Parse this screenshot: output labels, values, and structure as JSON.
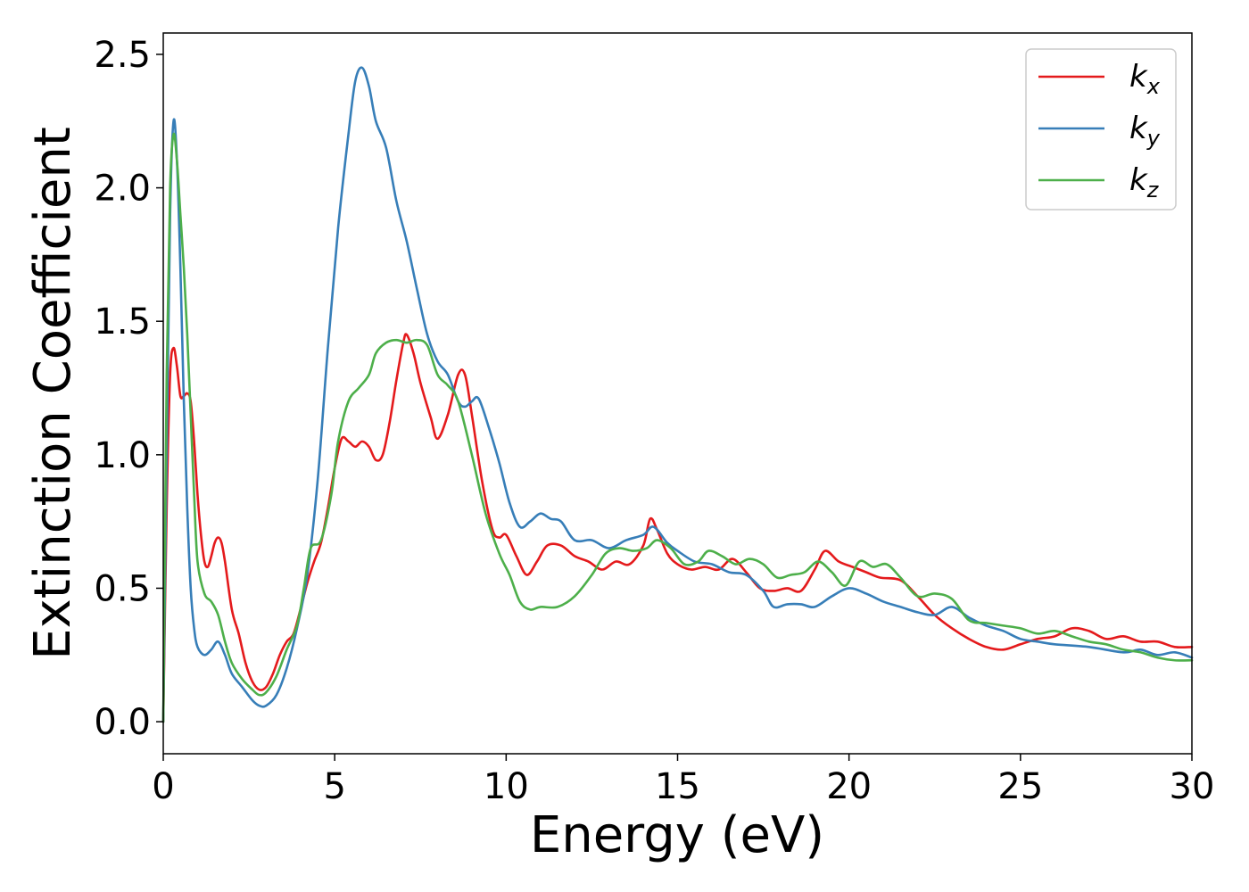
{
  "chart_data": {
    "type": "line",
    "xlabel": "Energy (eV)",
    "ylabel": "Extinction Coefficient",
    "xlim": [
      0,
      30
    ],
    "ylim": [
      -0.12,
      2.58
    ],
    "xticks": [
      0,
      5,
      10,
      15,
      20,
      25,
      30
    ],
    "xtick_labels": [
      "0",
      "5",
      "10",
      "15",
      "20",
      "25",
      "30"
    ],
    "yticks": [
      0.0,
      0.5,
      1.0,
      1.5,
      2.0,
      2.5
    ],
    "ytick_labels": [
      "0.0",
      "0.5",
      "1.0",
      "1.5",
      "2.0",
      "2.5"
    ],
    "grid": false,
    "legend_position": "top-right",
    "series": [
      {
        "name": "k_x",
        "label_main": "k",
        "label_sub": "x",
        "color": "#e41a1c",
        "points": [
          [
            0,
            0.0
          ],
          [
            0.1,
            0.8
          ],
          [
            0.2,
            1.3
          ],
          [
            0.3,
            1.4
          ],
          [
            0.4,
            1.33
          ],
          [
            0.5,
            1.22
          ],
          [
            0.6,
            1.22
          ],
          [
            0.7,
            1.23
          ],
          [
            0.8,
            1.2
          ],
          [
            0.9,
            1.05
          ],
          [
            1.0,
            0.85
          ],
          [
            1.1,
            0.7
          ],
          [
            1.2,
            0.6
          ],
          [
            1.3,
            0.58
          ],
          [
            1.4,
            0.62
          ],
          [
            1.5,
            0.67
          ],
          [
            1.6,
            0.69
          ],
          [
            1.7,
            0.67
          ],
          [
            1.8,
            0.6
          ],
          [
            2.0,
            0.42
          ],
          [
            2.2,
            0.33
          ],
          [
            2.4,
            0.22
          ],
          [
            2.6,
            0.15
          ],
          [
            2.8,
            0.12
          ],
          [
            3.0,
            0.13
          ],
          [
            3.2,
            0.18
          ],
          [
            3.4,
            0.25
          ],
          [
            3.6,
            0.3
          ],
          [
            3.8,
            0.33
          ],
          [
            4.0,
            0.42
          ],
          [
            4.2,
            0.52
          ],
          [
            4.4,
            0.6
          ],
          [
            4.6,
            0.67
          ],
          [
            4.8,
            0.8
          ],
          [
            5.0,
            0.95
          ],
          [
            5.2,
            1.06
          ],
          [
            5.4,
            1.05
          ],
          [
            5.6,
            1.03
          ],
          [
            5.8,
            1.05
          ],
          [
            6.0,
            1.03
          ],
          [
            6.2,
            0.98
          ],
          [
            6.4,
            1.0
          ],
          [
            6.6,
            1.12
          ],
          [
            6.8,
            1.28
          ],
          [
            7.0,
            1.42
          ],
          [
            7.1,
            1.45
          ],
          [
            7.3,
            1.38
          ],
          [
            7.5,
            1.27
          ],
          [
            7.8,
            1.14
          ],
          [
            8.0,
            1.06
          ],
          [
            8.3,
            1.15
          ],
          [
            8.6,
            1.3
          ],
          [
            8.8,
            1.3
          ],
          [
            9.0,
            1.15
          ],
          [
            9.3,
            0.9
          ],
          [
            9.6,
            0.72
          ],
          [
            9.8,
            0.69
          ],
          [
            10.0,
            0.7
          ],
          [
            10.3,
            0.62
          ],
          [
            10.6,
            0.55
          ],
          [
            10.9,
            0.6
          ],
          [
            11.2,
            0.66
          ],
          [
            11.6,
            0.66
          ],
          [
            12.0,
            0.62
          ],
          [
            12.4,
            0.6
          ],
          [
            12.8,
            0.57
          ],
          [
            13.2,
            0.6
          ],
          [
            13.6,
            0.59
          ],
          [
            14.0,
            0.66
          ],
          [
            14.2,
            0.76
          ],
          [
            14.4,
            0.72
          ],
          [
            14.7,
            0.63
          ],
          [
            15.0,
            0.59
          ],
          [
            15.4,
            0.57
          ],
          [
            15.8,
            0.58
          ],
          [
            16.2,
            0.57
          ],
          [
            16.6,
            0.61
          ],
          [
            17.0,
            0.56
          ],
          [
            17.4,
            0.5
          ],
          [
            17.8,
            0.49
          ],
          [
            18.2,
            0.5
          ],
          [
            18.6,
            0.49
          ],
          [
            19.0,
            0.57
          ],
          [
            19.3,
            0.64
          ],
          [
            19.7,
            0.6
          ],
          [
            20.1,
            0.58
          ],
          [
            20.5,
            0.56
          ],
          [
            20.9,
            0.54
          ],
          [
            21.5,
            0.53
          ],
          [
            22.0,
            0.47
          ],
          [
            22.5,
            0.4
          ],
          [
            23.0,
            0.35
          ],
          [
            23.5,
            0.31
          ],
          [
            24.0,
            0.28
          ],
          [
            24.5,
            0.27
          ],
          [
            25.0,
            0.29
          ],
          [
            25.5,
            0.31
          ],
          [
            26.0,
            0.32
          ],
          [
            26.5,
            0.35
          ],
          [
            27.0,
            0.34
          ],
          [
            27.5,
            0.31
          ],
          [
            28.0,
            0.32
          ],
          [
            28.5,
            0.3
          ],
          [
            29.0,
            0.3
          ],
          [
            29.5,
            0.28
          ],
          [
            30,
            0.28
          ]
        ]
      },
      {
        "name": "k_y",
        "label_main": "k",
        "label_sub": "y",
        "color": "#377eb8",
        "points": [
          [
            0,
            0.0
          ],
          [
            0.1,
            1.0
          ],
          [
            0.2,
            1.9
          ],
          [
            0.3,
            2.25
          ],
          [
            0.4,
            2.1
          ],
          [
            0.5,
            1.7
          ],
          [
            0.6,
            1.2
          ],
          [
            0.7,
            0.8
          ],
          [
            0.8,
            0.5
          ],
          [
            0.9,
            0.35
          ],
          [
            1.0,
            0.28
          ],
          [
            1.2,
            0.25
          ],
          [
            1.4,
            0.27
          ],
          [
            1.6,
            0.3
          ],
          [
            1.8,
            0.25
          ],
          [
            2.0,
            0.18
          ],
          [
            2.3,
            0.13
          ],
          [
            2.6,
            0.08
          ],
          [
            2.8,
            0.06
          ],
          [
            3.0,
            0.06
          ],
          [
            3.3,
            0.1
          ],
          [
            3.6,
            0.2
          ],
          [
            3.9,
            0.35
          ],
          [
            4.2,
            0.55
          ],
          [
            4.5,
            0.9
          ],
          [
            4.8,
            1.4
          ],
          [
            5.1,
            1.85
          ],
          [
            5.4,
            2.2
          ],
          [
            5.6,
            2.4
          ],
          [
            5.8,
            2.45
          ],
          [
            6.0,
            2.38
          ],
          [
            6.2,
            2.25
          ],
          [
            6.5,
            2.15
          ],
          [
            6.8,
            1.95
          ],
          [
            7.1,
            1.8
          ],
          [
            7.4,
            1.62
          ],
          [
            7.7,
            1.45
          ],
          [
            8.0,
            1.35
          ],
          [
            8.3,
            1.3
          ],
          [
            8.6,
            1.2
          ],
          [
            8.8,
            1.18
          ],
          [
            9.0,
            1.2
          ],
          [
            9.2,
            1.21
          ],
          [
            9.5,
            1.1
          ],
          [
            9.8,
            0.97
          ],
          [
            10.1,
            0.82
          ],
          [
            10.4,
            0.73
          ],
          [
            10.7,
            0.75
          ],
          [
            11.0,
            0.78
          ],
          [
            11.3,
            0.76
          ],
          [
            11.6,
            0.75
          ],
          [
            12.0,
            0.68
          ],
          [
            12.5,
            0.68
          ],
          [
            13.0,
            0.65
          ],
          [
            13.5,
            0.68
          ],
          [
            14.0,
            0.7
          ],
          [
            14.3,
            0.73
          ],
          [
            14.7,
            0.67
          ],
          [
            15.0,
            0.64
          ],
          [
            15.5,
            0.6
          ],
          [
            16.0,
            0.59
          ],
          [
            16.5,
            0.56
          ],
          [
            17.0,
            0.55
          ],
          [
            17.5,
            0.49
          ],
          [
            17.8,
            0.43
          ],
          [
            18.2,
            0.44
          ],
          [
            18.6,
            0.44
          ],
          [
            19.0,
            0.43
          ],
          [
            19.5,
            0.47
          ],
          [
            20.0,
            0.5
          ],
          [
            20.5,
            0.48
          ],
          [
            21.0,
            0.45
          ],
          [
            21.5,
            0.43
          ],
          [
            22.0,
            0.41
          ],
          [
            22.5,
            0.4
          ],
          [
            23.0,
            0.43
          ],
          [
            23.5,
            0.39
          ],
          [
            24.0,
            0.36
          ],
          [
            24.5,
            0.34
          ],
          [
            25.0,
            0.31
          ],
          [
            25.5,
            0.3
          ],
          [
            26.0,
            0.29
          ],
          [
            27.0,
            0.28
          ],
          [
            28.0,
            0.26
          ],
          [
            28.5,
            0.27
          ],
          [
            29.0,
            0.25
          ],
          [
            29.5,
            0.26
          ],
          [
            30,
            0.24
          ]
        ]
      },
      {
        "name": "k_z",
        "label_main": "k",
        "label_sub": "z",
        "color": "#4daf4a",
        "points": [
          [
            0,
            0.0
          ],
          [
            0.1,
            1.3
          ],
          [
            0.2,
            2.0
          ],
          [
            0.3,
            2.2
          ],
          [
            0.4,
            2.1
          ],
          [
            0.5,
            1.9
          ],
          [
            0.6,
            1.7
          ],
          [
            0.7,
            1.45
          ],
          [
            0.8,
            1.15
          ],
          [
            0.9,
            0.85
          ],
          [
            1.0,
            0.6
          ],
          [
            1.2,
            0.48
          ],
          [
            1.4,
            0.45
          ],
          [
            1.6,
            0.4
          ],
          [
            1.8,
            0.3
          ],
          [
            2.0,
            0.22
          ],
          [
            2.3,
            0.16
          ],
          [
            2.6,
            0.12
          ],
          [
            2.8,
            0.1
          ],
          [
            3.0,
            0.11
          ],
          [
            3.3,
            0.17
          ],
          [
            3.6,
            0.27
          ],
          [
            3.9,
            0.36
          ],
          [
            4.1,
            0.5
          ],
          [
            4.3,
            0.65
          ],
          [
            4.6,
            0.68
          ],
          [
            4.9,
            0.85
          ],
          [
            5.1,
            1.05
          ],
          [
            5.4,
            1.2
          ],
          [
            5.7,
            1.25
          ],
          [
            6.0,
            1.3
          ],
          [
            6.2,
            1.38
          ],
          [
            6.5,
            1.42
          ],
          [
            6.8,
            1.43
          ],
          [
            7.1,
            1.42
          ],
          [
            7.4,
            1.43
          ],
          [
            7.7,
            1.41
          ],
          [
            8.0,
            1.3
          ],
          [
            8.3,
            1.26
          ],
          [
            8.6,
            1.2
          ],
          [
            9.0,
            1.0
          ],
          [
            9.4,
            0.78
          ],
          [
            9.8,
            0.63
          ],
          [
            10.1,
            0.55
          ],
          [
            10.4,
            0.45
          ],
          [
            10.7,
            0.42
          ],
          [
            11.0,
            0.43
          ],
          [
            11.5,
            0.43
          ],
          [
            12.0,
            0.47
          ],
          [
            12.5,
            0.55
          ],
          [
            12.9,
            0.63
          ],
          [
            13.3,
            0.65
          ],
          [
            13.7,
            0.64
          ],
          [
            14.1,
            0.65
          ],
          [
            14.4,
            0.68
          ],
          [
            14.8,
            0.65
          ],
          [
            15.2,
            0.59
          ],
          [
            15.6,
            0.6
          ],
          [
            15.9,
            0.64
          ],
          [
            16.3,
            0.62
          ],
          [
            16.7,
            0.59
          ],
          [
            17.1,
            0.61
          ],
          [
            17.5,
            0.59
          ],
          [
            17.9,
            0.54
          ],
          [
            18.3,
            0.55
          ],
          [
            18.7,
            0.56
          ],
          [
            19.1,
            0.6
          ],
          [
            19.5,
            0.56
          ],
          [
            19.9,
            0.51
          ],
          [
            20.3,
            0.6
          ],
          [
            20.7,
            0.58
          ],
          [
            21.1,
            0.59
          ],
          [
            21.5,
            0.54
          ],
          [
            22.0,
            0.47
          ],
          [
            22.5,
            0.48
          ],
          [
            23.0,
            0.46
          ],
          [
            23.5,
            0.38
          ],
          [
            24.0,
            0.37
          ],
          [
            24.5,
            0.36
          ],
          [
            25.0,
            0.35
          ],
          [
            25.5,
            0.33
          ],
          [
            26.0,
            0.34
          ],
          [
            26.5,
            0.32
          ],
          [
            27.0,
            0.3
          ],
          [
            27.5,
            0.29
          ],
          [
            28.0,
            0.27
          ],
          [
            28.5,
            0.26
          ],
          [
            29.0,
            0.24
          ],
          [
            29.5,
            0.23
          ],
          [
            30,
            0.23
          ]
        ]
      }
    ]
  }
}
